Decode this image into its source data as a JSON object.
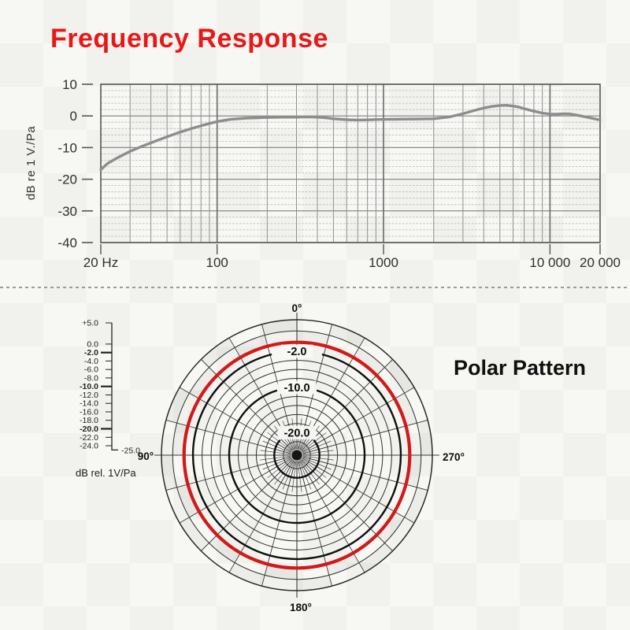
{
  "chart_data": [
    {
      "type": "line",
      "name": "frequency-response",
      "title": "Frequency Response",
      "title_color": "#e81818",
      "ylabel": "dB re 1 V./Pa",
      "x_scale": "log",
      "xlim": [
        20,
        20000
      ],
      "ylim": [
        -40,
        10
      ],
      "y_major_ticks": [
        10,
        0,
        -10,
        -20,
        -30,
        -40
      ],
      "y_minor_step": 2,
      "x_ticks": [
        {
          "value": 20,
          "label": "20 Hz"
        },
        {
          "value": 100,
          "label": "100"
        },
        {
          "value": 1000,
          "label": "1000"
        },
        {
          "value": 10000,
          "label": "10 000"
        },
        {
          "value": 20000,
          "label": "20 000"
        }
      ],
      "grid": true,
      "series": [
        {
          "name": "on-axis-response",
          "color": "#8d8d8d",
          "points": [
            [
              20,
              -17
            ],
            [
              22,
              -15
            ],
            [
              25,
              -13.3
            ],
            [
              28,
              -12
            ],
            [
              30,
              -11.2
            ],
            [
              35,
              -9.7
            ],
            [
              40,
              -8.5
            ],
            [
              45,
              -7.5
            ],
            [
              50,
              -6.6
            ],
            [
              60,
              -5.1
            ],
            [
              70,
              -4
            ],
            [
              80,
              -3.1
            ],
            [
              90,
              -2.4
            ],
            [
              100,
              -1.8
            ],
            [
              120,
              -1.1
            ],
            [
              150,
              -0.7
            ],
            [
              200,
              -0.5
            ],
            [
              250,
              -0.4
            ],
            [
              300,
              -0.4
            ],
            [
              350,
              -0.3
            ],
            [
              400,
              -0.4
            ],
            [
              450,
              -0.6
            ],
            [
              500,
              -0.9
            ],
            [
              600,
              -1.2
            ],
            [
              700,
              -1.3
            ],
            [
              800,
              -1.25
            ],
            [
              900,
              -1.15
            ],
            [
              1000,
              -1.1
            ],
            [
              1200,
              -1.05
            ],
            [
              1500,
              -1
            ],
            [
              2000,
              -0.9
            ],
            [
              2500,
              -0.3
            ],
            [
              3000,
              0.7
            ],
            [
              3500,
              1.7
            ],
            [
              4000,
              2.5
            ],
            [
              4500,
              3
            ],
            [
              5000,
              3.3
            ],
            [
              5500,
              3.35
            ],
            [
              6000,
              3.1
            ],
            [
              6500,
              2.8
            ],
            [
              7000,
              2.3
            ],
            [
              8000,
              1.5
            ],
            [
              9000,
              0.9
            ],
            [
              10000,
              0.6
            ],
            [
              11000,
              0.55
            ],
            [
              12000,
              0.7
            ],
            [
              13000,
              0.65
            ],
            [
              14000,
              0.4
            ],
            [
              15000,
              0.1
            ],
            [
              17000,
              -0.5
            ],
            [
              20000,
              -1.3
            ]
          ]
        }
      ]
    },
    {
      "type": "polar",
      "name": "polar-pattern",
      "title": "Polar Pattern",
      "r_axis": {
        "min": -25,
        "max": 5,
        "unit_label": "dB rel. 1V/Pa",
        "center_value_label": "-25.0",
        "ruler_ticks": [
          "+5.0",
          "0.0",
          "-2.0",
          "-4.0",
          "-6.0",
          "-8.0",
          "-10.0",
          "-12.0",
          "-14.0",
          "-16.0",
          "-18.0",
          "-20.0",
          "-22.0",
          "-24.0"
        ],
        "ruler_bold_ticks": [
          "-2.0",
          "-10.0",
          "-20.0"
        ]
      },
      "thin_rings_db": [
        2.5,
        -4,
        -6,
        -8,
        -12,
        -14,
        -16,
        -18,
        -22
      ],
      "bold_rings": [
        {
          "db": -2,
          "label": "-2.0",
          "gap_deg": 14
        },
        {
          "db": -10,
          "label": "-10.0",
          "gap_deg": 17
        },
        {
          "db": -20,
          "label": "-20.0",
          "gap_deg": 48
        }
      ],
      "outer_ring_db": 5,
      "spoke_step_deg": 15,
      "fine_spoke_step_deg": 7.5,
      "angle_labels": [
        {
          "deg": 0,
          "label": "0°"
        },
        {
          "deg": 90,
          "label": "90°",
          "side": "left"
        },
        {
          "deg": 180,
          "label": "180°"
        },
        {
          "deg": 270,
          "label": "270°",
          "side": "right"
        }
      ],
      "pattern": {
        "name": "omnidirectional",
        "db": 0,
        "color": "#d11a1a"
      }
    }
  ]
}
